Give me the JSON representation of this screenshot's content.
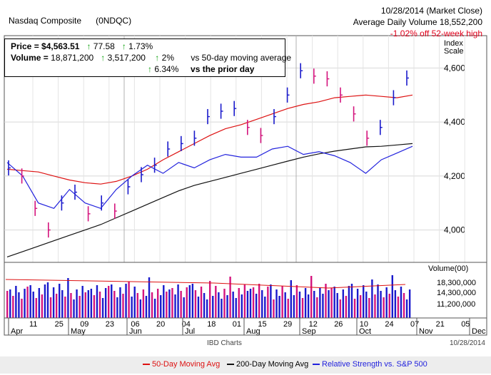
{
  "header": {
    "name": "Nasdaq Composite",
    "symbol": "(0NDQC)",
    "date": "10/28/2014 (Market Close)",
    "avg_volume": "Average Daily Volume 18,552,200",
    "off_high": "-1.02% off 52-week high"
  },
  "stats": {
    "price_label": "Price = ",
    "price_value": "$4,563.51",
    "price_chg": "77.58",
    "price_pct": "1.73%",
    "volume_label": "Volume = ",
    "volume_value": "18,871,200",
    "volume_chg": "3,517,200",
    "volume_pct": "2%",
    "vs_50": "vs 50-day moving average",
    "prior_pct": "6.34%",
    "vs_prior": "vs the prior day",
    "up_arrow": "↑"
  },
  "index_scale": {
    "line1": "Index",
    "line2": "Scale"
  },
  "volume_header": "Volume(00)",
  "credit": "IBD Charts",
  "footer_date": "10/28/2014",
  "legend": {
    "ma50": "50-Day Moving Avg",
    "ma200": "200-Day Moving Avg",
    "rs": "Relative Strength vs. S&P 500"
  },
  "colors": {
    "up": "#1a1acc",
    "down": "#d4147d",
    "ma50": "#dd1111",
    "ma200": "#111111",
    "rs": "#2222dd",
    "gain": "#12a312",
    "loss": "#e0001b"
  },
  "chart_data": {
    "type": "line",
    "title": "Nasdaq Composite (0NDQC)",
    "price_axis": {
      "ticks": [
        4000,
        4200,
        4400,
        4600
      ],
      "tick_labels": [
        "4,000",
        "4,200",
        "4,400",
        "4,600"
      ],
      "ylim": [
        3880,
        4720
      ]
    },
    "volume_axis": {
      "ticks": [
        18300000,
        14300000,
        11200000
      ],
      "tick_labels": [
        "18,300,000",
        "14,300,000",
        "11,200,000"
      ]
    },
    "x_tick_labels": [
      "11",
      "25",
      "09",
      "23",
      "06",
      "20",
      "04",
      "18",
      "01",
      "15",
      "29",
      "12",
      "26",
      "10",
      "24",
      "07",
      "21",
      "05"
    ],
    "month_labels": [
      "Apr",
      "May",
      "Jun",
      "Jul",
      "Aug",
      "Sep",
      "Oct",
      "Nov",
      "Dec"
    ],
    "grid": true,
    "series": [
      {
        "name": "50-Day Moving Avg",
        "values": [
          4225,
          4220,
          4215,
          4200,
          4185,
          4175,
          4170,
          4180,
          4200,
          4225,
          4260,
          4290,
          4320,
          4350,
          4375,
          4390,
          4410,
          4430,
          4450,
          4465,
          4475,
          4490,
          4495,
          4500,
          4495,
          4490,
          4500
        ]
      },
      {
        "name": "200-Day Moving Avg",
        "values": [
          3900,
          3920,
          3940,
          3960,
          3980,
          4000,
          4020,
          4045,
          4070,
          4095,
          4120,
          4145,
          4165,
          4180,
          4195,
          4210,
          4225,
          4240,
          4255,
          4270,
          4282,
          4292,
          4300,
          4308,
          4310,
          4315,
          4320
        ]
      },
      {
        "name": "Relative Strength vs. S&P 500",
        "values": [
          4250,
          4200,
          4100,
          4080,
          4150,
          4100,
          4080,
          4150,
          4200,
          4240,
          4210,
          4250,
          4230,
          4260,
          4280,
          4270,
          4270,
          4300,
          4310,
          4280,
          4290,
          4275,
          4250,
          4210,
          4260,
          4285,
          4310
        ]
      }
    ],
    "price_bars": [
      4230,
      4200,
      4080,
      4000,
      4100,
      4140,
      4060,
      4100,
      4070,
      4160,
      4205,
      4240,
      4300,
      4320,
      4340,
      4420,
      4440,
      4450,
      4380,
      4350,
      4420,
      4500,
      4590,
      4570,
      4560,
      4500,
      4430,
      4340,
      4380,
      4490,
      4563
    ]
  }
}
